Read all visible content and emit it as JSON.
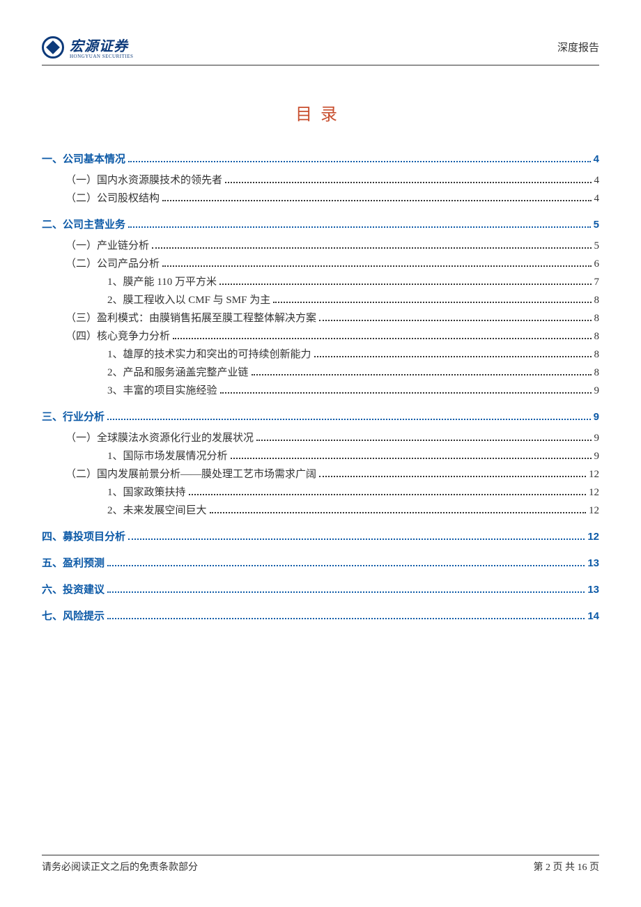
{
  "header": {
    "logo_cn": "宏源证券",
    "logo_en": "HONGYUAN SECURITIES",
    "right_label": "深度报告"
  },
  "title": "目录",
  "colors": {
    "title_color": "#c84e2e",
    "heading_color": "#0d5aa7",
    "text_color": "#333333",
    "logo_color": "#0d3a7a",
    "background": "#ffffff"
  },
  "typography": {
    "title_fontsize": 24,
    "body_fontsize": 15,
    "footer_fontsize": 14,
    "title_letter_spacing": 12
  },
  "toc": [
    {
      "level": 1,
      "label": "一、公司基本情况",
      "page": "4"
    },
    {
      "level": 2,
      "label": "（一）国内水资源膜技术的领先者",
      "page": "4"
    },
    {
      "level": 2,
      "label": "（二）公司股权结构",
      "page": "4"
    },
    {
      "level": 1,
      "label": "二、公司主营业务",
      "page": "5"
    },
    {
      "level": 2,
      "label": "（一）产业链分析",
      "page": "5"
    },
    {
      "level": 2,
      "label": "（二）公司产品分析",
      "page": "6"
    },
    {
      "level": 3,
      "label": "1、膜产能 110 万平方米",
      "page": "7"
    },
    {
      "level": 3,
      "label": "2、膜工程收入以 CMF 与 SMF 为主",
      "page": "8"
    },
    {
      "level": 2,
      "label": "（三）盈利模式：由膜销售拓展至膜工程整体解决方案",
      "page": "8"
    },
    {
      "level": 2,
      "label": "（四）核心竞争力分析",
      "page": "8"
    },
    {
      "level": 3,
      "label": "1、雄厚的技术实力和突出的可持续创新能力",
      "page": "8"
    },
    {
      "level": 3,
      "label": "2、产品和服务涵盖完整产业链",
      "page": "8"
    },
    {
      "level": 3,
      "label": "3、丰富的项目实施经验",
      "page": "9"
    },
    {
      "level": 1,
      "label": "三、行业分析",
      "page": "9"
    },
    {
      "level": 2,
      "label": "（一）全球膜法水资源化行业的发展状况",
      "page": "9"
    },
    {
      "level": 3,
      "label": "1、国际市场发展情况分析",
      "page": "9"
    },
    {
      "level": 2,
      "label": "（二）国内发展前景分析——膜处理工艺市场需求广阔",
      "page": "12"
    },
    {
      "level": 3,
      "label": "1、国家政策扶持",
      "page": "12"
    },
    {
      "level": 3,
      "label": "2、未来发展空间巨大",
      "page": "12"
    },
    {
      "level": 1,
      "label": "四、募投项目分析",
      "page": "12"
    },
    {
      "level": 1,
      "label": "五、盈利预测",
      "page": "13"
    },
    {
      "level": 1,
      "label": "六、投资建议",
      "page": "13"
    },
    {
      "level": 1,
      "label": "七、风险提示",
      "page": "14"
    }
  ],
  "footer": {
    "left": "请务必阅读正文之后的免责条款部分",
    "right": "第 2 页  共 16 页"
  }
}
